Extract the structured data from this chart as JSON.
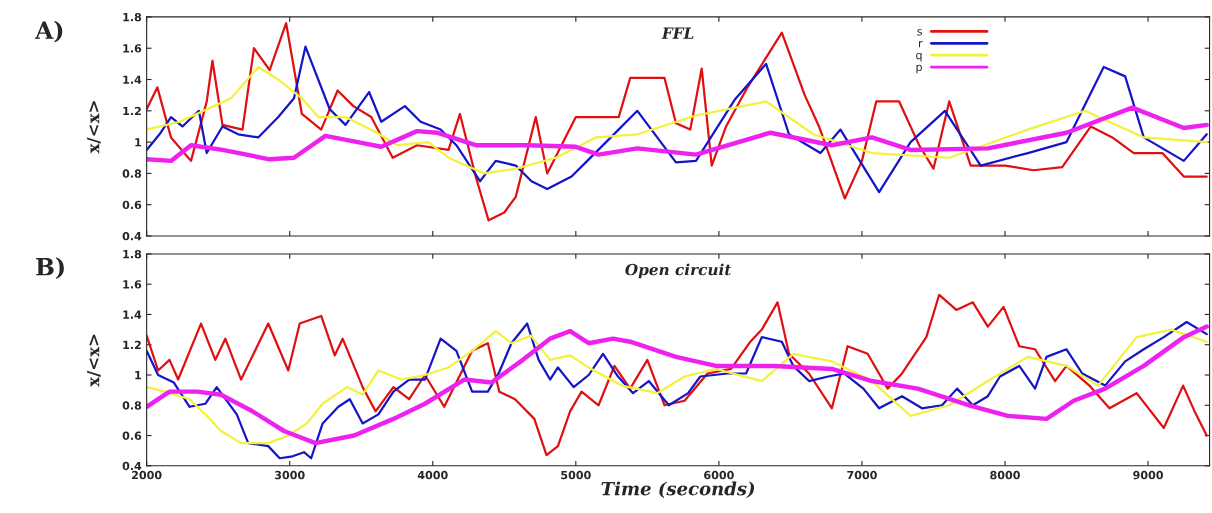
{
  "chart_data": [
    {
      "type": "line",
      "title": "FFL",
      "ylabel": "x/<x>",
      "annotations": [
        "A)"
      ],
      "xlim": [
        2000,
        9430
      ],
      "ylim": [
        0.4,
        1.8
      ],
      "xticks": [
        2000,
        3000,
        4000,
        5000,
        6000,
        7000,
        8000,
        9000
      ],
      "yticks": [
        0.4,
        0.6,
        0.8,
        1,
        1.2,
        1.4,
        1.6,
        1.8
      ],
      "tick_labels": "y",
      "legend": "top right",
      "series": [
        {
          "name": "s",
          "color": "#e01010",
          "x": [
            2000,
            2075,
            2170,
            2310,
            2420,
            2460,
            2530,
            2670,
            2750,
            2860,
            2975,
            3085,
            3220,
            3335,
            3445,
            3570,
            3720,
            3890,
            4110,
            4190,
            4300,
            4390,
            4500,
            4580,
            4720,
            4800,
            5000,
            5300,
            5380,
            5620,
            5700,
            5800,
            5880,
            5950,
            6050,
            6200,
            6440,
            6600,
            6700,
            6880,
            7000,
            7100,
            7260,
            7400,
            7500,
            7610,
            7760,
            8000,
            8200,
            8400,
            8600,
            8750,
            8900,
            9100,
            9250,
            9410
          ],
          "values": [
            1.21,
            1.35,
            1.03,
            0.88,
            1.26,
            1.52,
            1.11,
            1.08,
            1.6,
            1.46,
            1.76,
            1.18,
            1.08,
            1.33,
            1.23,
            1.16,
            0.9,
            0.98,
            0.95,
            1.18,
            0.78,
            0.5,
            0.55,
            0.65,
            1.16,
            0.8,
            1.16,
            1.16,
            1.41,
            1.41,
            1.12,
            1.08,
            1.47,
            0.85,
            1.1,
            1.35,
            1.7,
            1.3,
            1.1,
            0.64,
            0.88,
            1.26,
            1.26,
            0.98,
            0.83,
            1.26,
            0.85,
            0.85,
            0.82,
            0.84,
            1.1,
            1.03,
            0.93,
            0.93,
            0.78,
            0.78
          ]
        },
        {
          "name": "r",
          "color": "#1414c8",
          "x": [
            2000,
            2090,
            2170,
            2250,
            2365,
            2420,
            2530,
            2640,
            2780,
            2920,
            3030,
            3110,
            3280,
            3390,
            3555,
            3640,
            3805,
            3915,
            4055,
            4165,
            4330,
            4440,
            4580,
            4690,
            4800,
            4970,
            5080,
            5245,
            5430,
            5700,
            5840,
            6110,
            6330,
            6490,
            6710,
            6850,
            7120,
            7340,
            7580,
            7830,
            8160,
            8430,
            8690,
            8840,
            8970,
            9250,
            9410
          ],
          "values": [
            0.95,
            1.05,
            1.16,
            1.1,
            1.2,
            0.93,
            1.1,
            1.05,
            1.03,
            1.16,
            1.28,
            1.61,
            1.21,
            1.11,
            1.32,
            1.13,
            1.23,
            1.13,
            1.08,
            0.98,
            0.75,
            0.88,
            0.85,
            0.75,
            0.7,
            0.78,
            0.88,
            1.03,
            1.2,
            0.87,
            0.88,
            1.27,
            1.5,
            1.05,
            0.93,
            1.08,
            0.68,
            1.0,
            1.2,
            0.85,
            0.93,
            1.0,
            1.48,
            1.42,
            1.03,
            0.88,
            1.05
          ]
        },
        {
          "name": "q",
          "color": "#f2f23c",
          "x": [
            2000,
            2230,
            2590,
            2780,
            2920,
            3085,
            3200,
            3390,
            3610,
            3750,
            3970,
            4110,
            4360,
            4580,
            4860,
            5140,
            5430,
            5840,
            6330,
            6660,
            7070,
            7610,
            8160,
            8560,
            8970,
            9410
          ],
          "values": [
            1.08,
            1.13,
            1.28,
            1.48,
            1.4,
            1.28,
            1.16,
            1.16,
            1.06,
            0.98,
            1.0,
            0.9,
            0.8,
            0.83,
            0.9,
            1.03,
            1.05,
            1.17,
            1.26,
            1.05,
            0.93,
            0.9,
            1.08,
            1.2,
            1.03,
            1.0
          ]
        },
        {
          "name": "p",
          "color": "#ee22ee",
          "x": [
            2000,
            2170,
            2310,
            2530,
            2860,
            3030,
            3250,
            3475,
            3640,
            3890,
            4030,
            4300,
            4665,
            5000,
            5159,
            5430,
            5840,
            6360,
            6790,
            7070,
            7340,
            7880,
            8430,
            8890,
            9250,
            9410
          ],
          "values": [
            0.89,
            0.88,
            0.98,
            0.95,
            0.89,
            0.9,
            1.04,
            1.0,
            0.97,
            1.07,
            1.06,
            0.98,
            0.98,
            0.97,
            0.92,
            0.96,
            0.92,
            1.06,
            0.98,
            1.03,
            0.95,
            0.96,
            1.06,
            1.22,
            1.09,
            1.11
          ]
        }
      ]
    },
    {
      "type": "line",
      "title": "Open circuit",
      "xlabel": "Time (seconds)",
      "ylabel": "x/<x>",
      "annotations": [
        "B)"
      ],
      "xlim": [
        2000,
        9430
      ],
      "ylim": [
        0.4,
        1.8
      ],
      "xticks": [
        2000,
        3000,
        4000,
        5000,
        6000,
        7000,
        8000,
        9000
      ],
      "yticks": [
        0.4,
        0.6,
        0.8,
        1,
        1.2,
        1.4,
        1.6,
        1.8
      ],
      "series": [
        {
          "color": "#e01010",
          "x": [
            2000,
            2080,
            2160,
            2220,
            2380,
            2480,
            2550,
            2660,
            2850,
            2990,
            3070,
            3220,
            3315,
            3370,
            3510,
            3600,
            3725,
            3835,
            3945,
            4080,
            4275,
            4385,
            4465,
            4575,
            4710,
            4795,
            4875,
            4960,
            5040,
            5159,
            5270,
            5380,
            5500,
            5620,
            5760,
            5920,
            6085,
            6220,
            6300,
            6410,
            6490,
            6630,
            6790,
            6900,
            7040,
            7180,
            7280,
            7450,
            7540,
            7660,
            7775,
            7880,
            7990,
            8100,
            8210,
            8350,
            8430,
            8590,
            8730,
            8920,
            9110,
            9245,
            9330,
            9410
          ],
          "values": [
            1.26,
            1.03,
            1.1,
            0.97,
            1.34,
            1.1,
            1.24,
            0.97,
            1.34,
            1.03,
            1.34,
            1.39,
            1.13,
            1.24,
            0.92,
            0.76,
            0.92,
            0.84,
            1.0,
            0.79,
            1.16,
            1.21,
            0.89,
            0.84,
            0.71,
            0.47,
            0.53,
            0.76,
            0.89,
            0.8,
            1.06,
            0.91,
            1.1,
            0.8,
            0.83,
            1.01,
            1.04,
            1.22,
            1.3,
            1.48,
            1.14,
            1.01,
            0.78,
            1.19,
            1.14,
            0.91,
            1.01,
            1.25,
            1.53,
            1.43,
            1.48,
            1.32,
            1.45,
            1.19,
            1.17,
            0.96,
            1.06,
            0.93,
            0.78,
            0.88,
            0.65,
            0.93,
            0.75,
            0.6
          ]
        },
        {
          "color": "#1414c8",
          "x": [
            2000,
            2080,
            2190,
            2300,
            2410,
            2490,
            2630,
            2710,
            2850,
            2930,
            3010,
            3100,
            3150,
            3230,
            3340,
            3420,
            3510,
            3620,
            3725,
            3835,
            3945,
            4055,
            4165,
            4275,
            4385,
            4465,
            4550,
            4660,
            4740,
            4820,
            4875,
            4985,
            5090,
            5190,
            5295,
            5400,
            5510,
            5650,
            5785,
            5870,
            6060,
            6190,
            6300,
            6440,
            6520,
            6630,
            6765,
            6875,
            7010,
            7120,
            7280,
            7420,
            7560,
            7665,
            7775,
            7880,
            7965,
            8100,
            8210,
            8290,
            8430,
            8540,
            8700,
            8840,
            8970,
            9110,
            9270,
            9410
          ],
          "values": [
            1.16,
            1.0,
            0.95,
            0.79,
            0.81,
            0.92,
            0.74,
            0.55,
            0.53,
            0.45,
            0.46,
            0.49,
            0.45,
            0.68,
            0.79,
            0.84,
            0.68,
            0.74,
            0.89,
            0.97,
            0.97,
            1.24,
            1.16,
            0.89,
            0.89,
            1.02,
            1.21,
            1.34,
            1.1,
            0.97,
            1.05,
            0.92,
            1.0,
            1.14,
            0.99,
            0.88,
            0.96,
            0.8,
            0.88,
            0.99,
            1.01,
            1.01,
            1.25,
            1.22,
            1.06,
            0.96,
            0.99,
            1.01,
            0.91,
            0.78,
            0.86,
            0.78,
            0.8,
            0.91,
            0.8,
            0.86,
            0.99,
            1.06,
            0.91,
            1.12,
            1.17,
            1.01,
            0.93,
            1.09,
            1.17,
            1.25,
            1.35,
            1.27
          ]
        },
        {
          "color": "#f2f23c",
          "x": [
            2000,
            2130,
            2300,
            2410,
            2520,
            2660,
            2850,
            2990,
            3120,
            3230,
            3400,
            3510,
            3620,
            3780,
            3945,
            4110,
            4275,
            4440,
            4550,
            4685,
            4820,
            4960,
            5090,
            5320,
            5570,
            5760,
            5980,
            6300,
            6520,
            6790,
            7070,
            7340,
            7610,
            7880,
            8160,
            8430,
            8650,
            8920,
            9160,
            9410
          ],
          "values": [
            0.92,
            0.89,
            0.84,
            0.74,
            0.63,
            0.55,
            0.55,
            0.6,
            0.68,
            0.81,
            0.92,
            0.87,
            1.03,
            0.97,
            1.0,
            1.05,
            1.16,
            1.29,
            1.21,
            1.26,
            1.1,
            1.13,
            1.05,
            0.93,
            0.88,
            0.99,
            1.04,
            0.96,
            1.14,
            1.09,
            0.96,
            0.73,
            0.8,
            0.96,
            1.12,
            1.06,
            0.93,
            1.25,
            1.3,
            1.22
          ]
        },
        {
          "color": "#ee22ee",
          "x": [
            2000,
            2160,
            2355,
            2520,
            2740,
            2960,
            3180,
            3450,
            3725,
            3945,
            4220,
            4410,
            4630,
            4820,
            4960,
            5090,
            5260,
            5380,
            5700,
            5980,
            6390,
            6790,
            7070,
            7390,
            7750,
            8020,
            8290,
            8480,
            8700,
            8970,
            9250,
            9410
          ],
          "values": [
            0.79,
            0.89,
            0.89,
            0.87,
            0.76,
            0.63,
            0.55,
            0.6,
            0.71,
            0.81,
            0.97,
            0.95,
            1.1,
            1.24,
            1.29,
            1.21,
            1.24,
            1.22,
            1.12,
            1.06,
            1.06,
            1.04,
            0.96,
            0.91,
            0.8,
            0.73,
            0.71,
            0.83,
            0.91,
            1.06,
            1.25,
            1.32
          ]
        }
      ]
    }
  ]
}
